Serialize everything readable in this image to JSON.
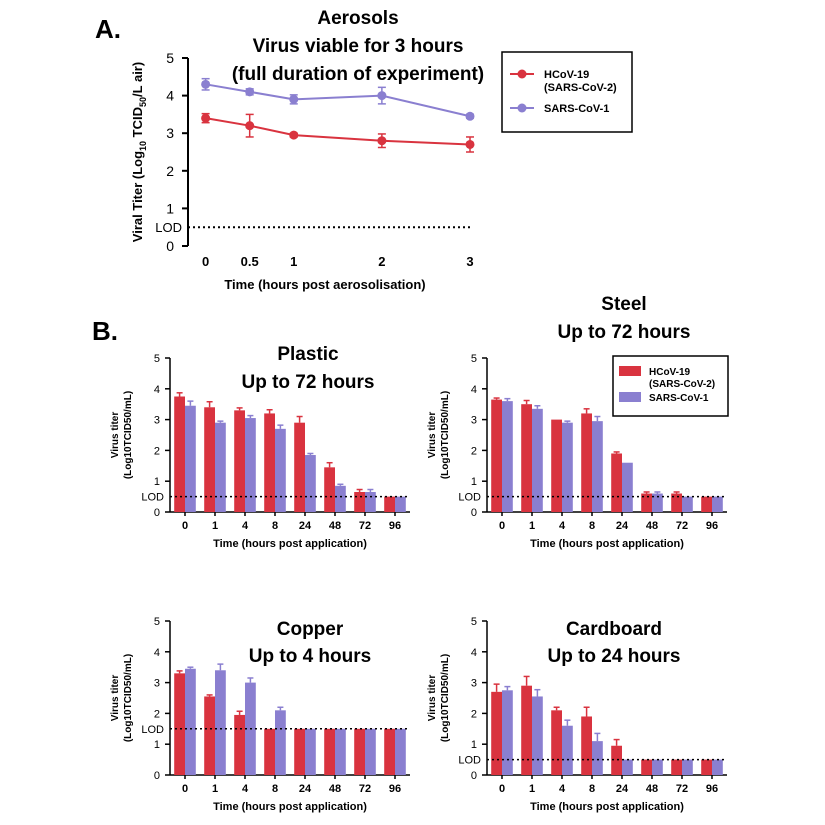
{
  "colors": {
    "cov2": "#d9333f",
    "cov1": "#8a7fd0",
    "axis": "#000000"
  },
  "panel_a": {
    "letter": "A."
  },
  "panel_b": {
    "letter": "B."
  },
  "chart_data": [
    {
      "id": "aerosol",
      "type": "line",
      "title_lines": [
        "Aerosols",
        "Virus viable for 3 hours",
        "(full duration of experiment)"
      ],
      "xlabel": "Time (hours post aerosolisation)",
      "ylabel": {
        "pre": "Viral Titer (Log",
        "sub10": "10",
        "mid": " TCID",
        "sub50": "50",
        "post": "/L air)"
      },
      "x": [
        0,
        0.5,
        1,
        2,
        3
      ],
      "x_tick_labels": [
        "0",
        "0.5",
        "1",
        "2",
        "3"
      ],
      "ylim": [
        0,
        5
      ],
      "y_ticks": [
        "0",
        "1",
        "2",
        "3",
        "4",
        "5"
      ],
      "lod": {
        "label": "LOD",
        "value": 0.5
      },
      "series": [
        {
          "name": "SARS-CoV-1",
          "color_key": "cov1",
          "values": [
            4.3,
            4.1,
            3.9,
            4.0,
            3.45
          ],
          "errors": [
            0.15,
            0.08,
            0.12,
            0.22,
            0.05
          ]
        },
        {
          "name": "HCoV-19 (SARS-CoV-2)",
          "color_key": "cov2",
          "values": [
            3.4,
            3.2,
            2.95,
            2.8,
            2.7
          ],
          "errors": [
            0.12,
            0.3,
            0.05,
            0.18,
            0.2
          ]
        }
      ],
      "legend": [
        {
          "color_key": "cov2",
          "lines": [
            "HCoV-19",
            "(SARS-CoV-2)"
          ]
        },
        {
          "color_key": "cov1",
          "lines": [
            "SARS-CoV-1"
          ]
        }
      ]
    },
    {
      "id": "plastic",
      "type": "bar",
      "title_lines": [
        "Plastic",
        "Up to 72 hours"
      ],
      "categories": [
        "0",
        "1",
        "4",
        "8",
        "24",
        "48",
        "72",
        "96"
      ],
      "xlabel": "Time (hours post application)",
      "ylabel_lines": [
        "Virus titer",
        "(Log10TCID50/mL)"
      ],
      "ylim": [
        0,
        5
      ],
      "y_ticks": [
        "0",
        "1",
        "2",
        "3",
        "4",
        "5"
      ],
      "lod": {
        "label": "LOD",
        "value": 0.5
      },
      "series": [
        {
          "name": "HCoV-19 (SARS-CoV-2)",
          "color_key": "cov2",
          "values": [
            3.75,
            3.4,
            3.3,
            3.2,
            2.9,
            1.45,
            0.65,
            0.5
          ],
          "errors": [
            0.12,
            0.18,
            0.08,
            0.12,
            0.2,
            0.15,
            0.08,
            0
          ]
        },
        {
          "name": "SARS-CoV-1",
          "color_key": "cov1",
          "values": [
            3.45,
            2.9,
            3.05,
            2.7,
            1.85,
            0.85,
            0.65,
            0.5
          ],
          "errors": [
            0.15,
            0.05,
            0.08,
            0.12,
            0.05,
            0.05,
            0.08,
            0
          ]
        }
      ]
    },
    {
      "id": "steel",
      "type": "bar",
      "title_lines": [
        "Steel",
        "Up to 72 hours"
      ],
      "categories": [
        "0",
        "1",
        "4",
        "8",
        "24",
        "48",
        "72",
        "96"
      ],
      "xlabel": "Time (hours post application)",
      "ylabel_lines": [
        "Virus titer",
        "(Log10TCID50/mL)"
      ],
      "ylim": [
        0,
        5
      ],
      "y_ticks": [
        "0",
        "1",
        "2",
        "3",
        "4",
        "5"
      ],
      "lod": {
        "label": "LOD",
        "value": 0.5
      },
      "series": [
        {
          "name": "HCoV-19 (SARS-CoV-2)",
          "color_key": "cov2",
          "values": [
            3.65,
            3.5,
            3.0,
            3.2,
            1.9,
            0.6,
            0.6,
            0.5
          ],
          "errors": [
            0.05,
            0.12,
            0,
            0.15,
            0.05,
            0.05,
            0.05,
            0
          ]
        },
        {
          "name": "SARS-CoV-1",
          "color_key": "cov1",
          "values": [
            3.6,
            3.35,
            2.9,
            2.95,
            1.6,
            0.6,
            0.5,
            0.5
          ],
          "errors": [
            0.08,
            0.1,
            0.05,
            0.15,
            0,
            0.05,
            0,
            0
          ]
        }
      ],
      "legend": [
        {
          "color_key": "cov2",
          "lines": [
            "HCoV-19",
            "(SARS-CoV-2)"
          ]
        },
        {
          "color_key": "cov1",
          "lines": [
            "SARS-CoV-1"
          ]
        }
      ]
    },
    {
      "id": "copper",
      "type": "bar",
      "title_lines": [
        "Copper",
        "Up to 4 hours"
      ],
      "categories": [
        "0",
        "1",
        "4",
        "8",
        "24",
        "48",
        "72",
        "96"
      ],
      "xlabel": "Time (hours post application)",
      "ylabel_lines": [
        "Virus titer",
        "(Log10TCID50/mL)"
      ],
      "ylim": [
        0,
        5
      ],
      "y_ticks": [
        "0",
        "1",
        "2",
        "3",
        "4",
        "5"
      ],
      "lod": {
        "label": "LOD",
        "value": 1.5
      },
      "series": [
        {
          "name": "HCoV-19 (SARS-CoV-2)",
          "color_key": "cov2",
          "values": [
            3.3,
            2.55,
            1.95,
            1.5,
            1.5,
            1.5,
            1.5,
            1.5
          ],
          "errors": [
            0.08,
            0.05,
            0.12,
            0,
            0,
            0,
            0,
            0
          ]
        },
        {
          "name": "SARS-CoV-1",
          "color_key": "cov1",
          "values": [
            3.45,
            3.4,
            3.0,
            2.1,
            1.5,
            1.5,
            1.5,
            1.5
          ],
          "errors": [
            0.05,
            0.2,
            0.15,
            0.1,
            0,
            0,
            0,
            0
          ]
        }
      ]
    },
    {
      "id": "cardboard",
      "type": "bar",
      "title_lines": [
        "Cardboard",
        "Up to 24 hours"
      ],
      "categories": [
        "0",
        "1",
        "4",
        "8",
        "24",
        "48",
        "72",
        "96"
      ],
      "xlabel": "Time (hours post application)",
      "ylabel_lines": [
        "Virus titer",
        "(Log10TCID50/mL)"
      ],
      "ylim": [
        0,
        5
      ],
      "y_ticks": [
        "0",
        "1",
        "2",
        "3",
        "4",
        "5"
      ],
      "lod": {
        "label": "LOD",
        "value": 0.5
      },
      "series": [
        {
          "name": "HCoV-19 (SARS-CoV-2)",
          "color_key": "cov2",
          "values": [
            2.7,
            2.9,
            2.1,
            1.9,
            0.95,
            0.5,
            0.5,
            0.5
          ],
          "errors": [
            0.25,
            0.3,
            0.1,
            0.3,
            0.2,
            0,
            0,
            0
          ]
        },
        {
          "name": "SARS-CoV-1",
          "color_key": "cov1",
          "values": [
            2.75,
            2.55,
            1.6,
            1.1,
            0.5,
            0.5,
            0.5,
            0.5
          ],
          "errors": [
            0.12,
            0.22,
            0.18,
            0.25,
            0,
            0,
            0,
            0
          ]
        }
      ]
    }
  ]
}
